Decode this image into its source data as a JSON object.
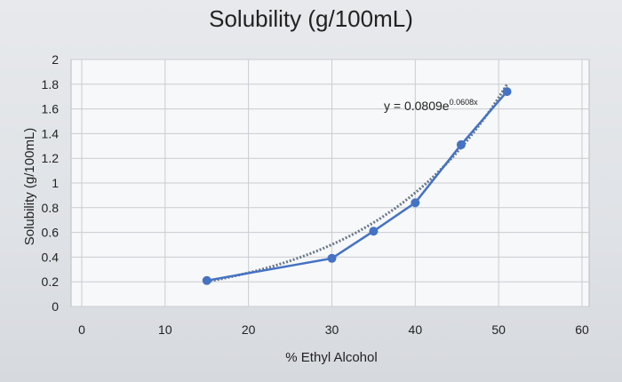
{
  "chart_data": {
    "type": "scatter",
    "title": "Solubility (g/100mL)",
    "xlabel": "% Ethyl Alcohol",
    "ylabel": "Solubility (g/100mL)",
    "xlim": [
      0,
      60
    ],
    "ylim": [
      0,
      2
    ],
    "x_ticks": [
      "0",
      "10",
      "20",
      "30",
      "40",
      "50",
      "60"
    ],
    "y_ticks": [
      "0",
      "0.2",
      "0.4",
      "0.6",
      "0.8",
      "1",
      "1.2",
      "1.4",
      "1.6",
      "1.8",
      "2"
    ],
    "grid": true,
    "series": [
      {
        "x": [
          15,
          30,
          35,
          40,
          45.5,
          51
        ],
        "y": [
          0.21,
          0.39,
          0.61,
          0.84,
          1.31,
          1.74
        ],
        "color": "#4472c4"
      }
    ],
    "trendline": {
      "type": "exponential",
      "a": 0.0809,
      "b": 0.0608,
      "x_range": [
        15,
        51
      ],
      "color": "#6b7787",
      "label_main": "y = 0.0809e",
      "label_sup": "0.0608x"
    }
  }
}
